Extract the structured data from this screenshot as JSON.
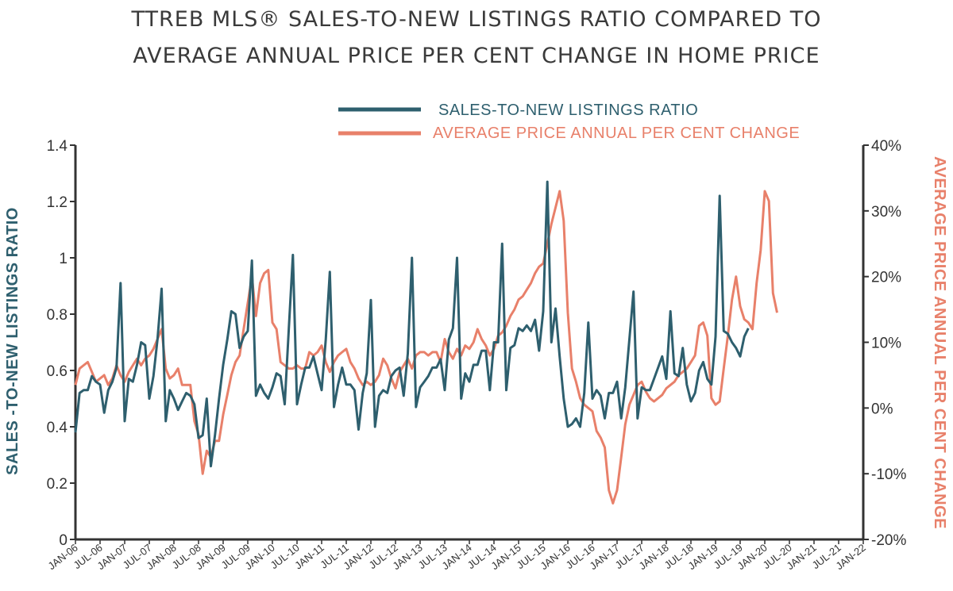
{
  "colors": {
    "teal": "#2e5f6e",
    "salmon": "#e8806a",
    "axis": "#333333"
  },
  "chart_data": {
    "type": "line",
    "title_lines": [
      "TTREB MLS® SALES-TO-NEW LISTINGS RATIO COMPARED TO",
      "AVERAGE ANNUAL PRICE PER CENT CHANGE IN HOME PRICE"
    ],
    "x_ticks": [
      "JAN-06",
      "JUL-06",
      "JAN-07",
      "JUL-07",
      "JAN-08",
      "JUL-08",
      "JAN-09",
      "JUL-09",
      "JAN-10",
      "JUL-10",
      "JAN-11",
      "JUL-11",
      "JAN-12",
      "JUL-12",
      "JAN-13",
      "JUL-13",
      "JAN-14",
      "JUL-14",
      "JAN-15",
      "JUL-15",
      "JAN-16",
      "JUL-16",
      "JAN-17",
      "JUL-17",
      "JAN-18",
      "JUL-18",
      "JAN-19",
      "JUL-19",
      "JAN-20",
      "JUL-20",
      "JAN-21",
      "JUL-21",
      "JAN-22"
    ],
    "x_range": [
      "2006-01",
      "2022-01"
    ],
    "y_left": {
      "label": "SALES -TO-NEW LISTINGS RATIO",
      "range": [
        0,
        1.4
      ],
      "ticks": [
        "0",
        "0.2",
        "0.4",
        "0.6",
        "0.8",
        "1",
        "1.2",
        "1.4"
      ]
    },
    "y_right": {
      "label": "AVERAGE PRICE ANNUAL PER CENT CHANGE",
      "range": [
        -20,
        40
      ],
      "unit": "%",
      "ticks": [
        "-20%",
        "-10%",
        "0%",
        "10%",
        "20%",
        "30%",
        "40%"
      ]
    },
    "legend_position": "top-center",
    "grid": false,
    "series": [
      {
        "name": "SALES-TO-NEW LISTINGS RATIO",
        "color": "#2e5f6e",
        "axis": "left",
        "values": [
          0.38,
          0.52,
          0.53,
          0.53,
          0.58,
          0.56,
          0.55,
          0.45,
          0.53,
          0.56,
          0.61,
          0.91,
          0.42,
          0.57,
          0.56,
          0.62,
          0.7,
          0.69,
          0.5,
          0.58,
          0.71,
          0.89,
          0.42,
          0.53,
          0.5,
          0.46,
          0.49,
          0.52,
          0.51,
          0.48,
          0.36,
          0.37,
          0.5,
          0.26,
          0.37,
          0.5,
          0.62,
          0.71,
          0.81,
          0.8,
          0.68,
          0.72,
          0.74,
          0.99,
          0.51,
          0.55,
          0.52,
          0.5,
          0.54,
          0.59,
          0.58,
          0.48,
          0.75,
          1.01,
          0.48,
          0.55,
          0.61,
          0.61,
          0.65,
          0.59,
          0.53,
          0.71,
          0.95,
          0.47,
          0.55,
          0.61,
          0.55,
          0.55,
          0.53,
          0.39,
          0.52,
          0.59,
          0.85,
          0.4,
          0.51,
          0.53,
          0.52,
          0.58,
          0.6,
          0.61,
          0.51,
          0.66,
          1.0,
          0.47,
          0.54,
          0.56,
          0.58,
          0.61,
          0.61,
          0.64,
          0.53,
          0.71,
          0.75,
          1.0,
          0.5,
          0.59,
          0.56,
          0.62,
          0.62,
          0.67,
          0.67,
          0.53,
          0.7,
          0.7,
          1.05,
          0.53,
          0.68,
          0.69,
          0.75,
          0.74,
          0.76,
          0.74,
          0.78,
          0.67,
          0.81,
          1.27,
          0.7,
          0.82,
          0.65,
          0.5,
          0.4,
          0.41,
          0.43,
          0.4,
          0.52,
          0.77,
          0.5,
          0.53,
          0.51,
          0.43,
          0.52,
          0.52,
          0.56,
          0.43,
          0.54,
          0.71,
          0.88,
          0.43,
          0.54,
          0.53,
          0.53,
          0.57,
          0.61,
          0.65,
          0.57,
          0.81,
          0.59,
          0.58,
          0.68,
          0.55,
          0.49,
          0.52,
          0.6,
          0.63,
          0.57,
          0.55,
          0.72,
          1.22,
          0.74,
          0.73,
          0.7,
          0.68,
          0.65,
          0.72,
          0.75
        ]
      },
      {
        "name": "AVERAGE PRICE ANNUAL PER CENT CHANGE",
        "color": "#e8806a",
        "axis": "right",
        "values": [
          3.5,
          6.0,
          6.5,
          7.0,
          5.5,
          4.0,
          4.5,
          5.0,
          3.5,
          4.5,
          6.5,
          5.0,
          4.0,
          5.5,
          6.5,
          7.5,
          6.5,
          7.5,
          8.0,
          9.0,
          10.5,
          12.0,
          6.0,
          4.5,
          5.0,
          6.0,
          3.5,
          3.5,
          3.5,
          -2.0,
          -4.0,
          -10.0,
          -6.5,
          -7.5,
          -5.0,
          -5.0,
          -1.0,
          2.0,
          5.0,
          7.0,
          8.0,
          12.0,
          16.0,
          20.0,
          14.0,
          19.0,
          20.5,
          21.0,
          13.0,
          12.0,
          7.0,
          6.5,
          6.0,
          6.0,
          6.5,
          6.0,
          6.0,
          8.5,
          8.0,
          8.5,
          9.5,
          7.0,
          5.5,
          7.0,
          8.0,
          8.5,
          9.0,
          7.0,
          6.0,
          4.5,
          3.5,
          4.0,
          3.5,
          4.0,
          5.0,
          7.5,
          6.5,
          4.5,
          3.0,
          5.5,
          6.5,
          7.5,
          6.0,
          8.0,
          8.5,
          8.5,
          8.0,
          8.5,
          8.5,
          7.0,
          10.5,
          8.5,
          7.5,
          9.0,
          8.0,
          9.5,
          9.0,
          10.0,
          12.0,
          10.5,
          9.5,
          8.0,
          9.0,
          11.0,
          11.5,
          12.5,
          14.0,
          15.0,
          16.5,
          17.0,
          18.0,
          19.0,
          20.5,
          21.5,
          22.0,
          25.0,
          28.0,
          30.5,
          33.0,
          28.5,
          14.5,
          6.0,
          4.0,
          1.5,
          0.5,
          0.0,
          -0.5,
          -3.5,
          -4.5,
          -6.0,
          -12.5,
          -14.5,
          -12.5,
          -7.5,
          -2.5,
          0.5,
          2.0,
          3.5,
          4.0,
          2.5,
          1.5,
          1.0,
          1.5,
          2.0,
          3.0,
          3.5,
          4.0,
          5.0,
          5.5,
          6.0,
          7.0,
          8.0,
          12.5,
          13.0,
          11.0,
          1.5,
          0.5,
          1.0,
          6.0,
          11.0,
          16.5,
          20.0,
          15.5,
          13.5,
          13.0,
          12.0,
          19.0,
          24.0,
          33.0,
          31.5,
          17.5,
          14.5
        ]
      }
    ]
  }
}
